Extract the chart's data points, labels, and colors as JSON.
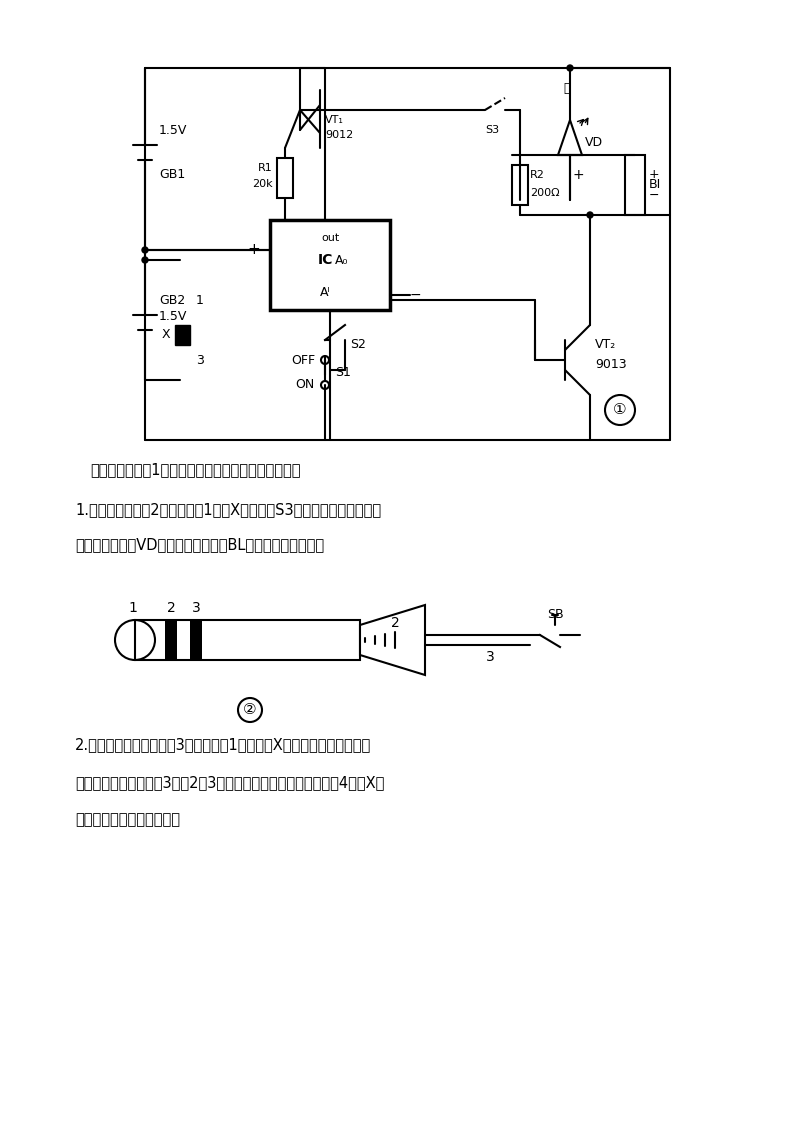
{
  "bg_color": "#ffffff",
  "text_color": "#000000",
  "line_color": "#000000",
  "page_width": 8.0,
  "page_height": 11.32,
  "texts": {
    "intro": "下面介绍利用图1线路所能实现的各种新的使用功能。",
    "item1_title": "1.声光门铃：将图2插头插入图1插座X内，按下S3会使原电磁讯响器发出",
    "item1_cont": "响亮的定闹声，VD也随之闪动发光。BL也可用扬声器代替。",
    "item2_title": "2.水位、湿度报警：将图3插头插入图1三芊插座X内，因水是导电的，局",
    "item2_cont1": "时只要水位上升到使图3中的2、3点短路即可发出声光定闹。将图4插入X中",
    "item2_cont2": "则可实现湿度或下雨报警。"
  }
}
